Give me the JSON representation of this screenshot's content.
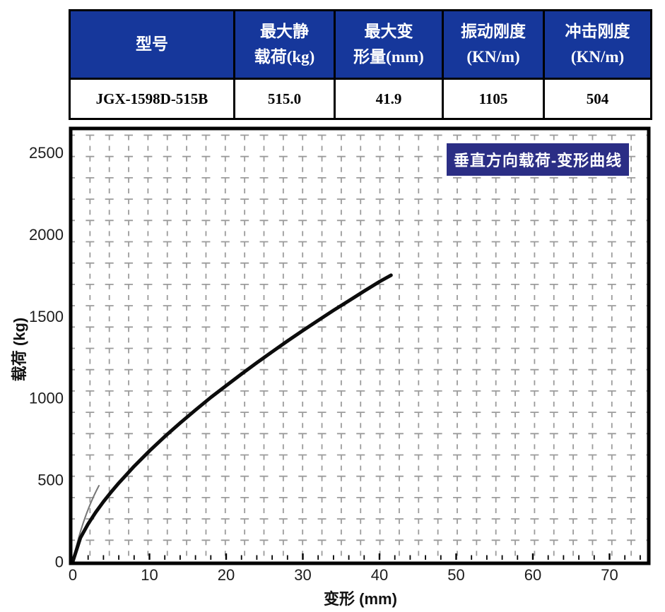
{
  "table": {
    "columns": [
      {
        "key": "model",
        "label": "型号"
      },
      {
        "key": "max_static_load",
        "label": "最大静\n载荷(kg)"
      },
      {
        "key": "max_deformation",
        "label": "最大变\n形量(mm)"
      },
      {
        "key": "vibration_stiffness",
        "label": "振动刚度\n(KN/m)"
      },
      {
        "key": "impact_stiffness",
        "label": "冲击刚度\n(KN/m)"
      }
    ],
    "row": {
      "model": "JGX-1598D-515B",
      "max_static_load": "515.0",
      "max_deformation": "41.9",
      "vibration_stiffness": "1105",
      "impact_stiffness": "504"
    }
  },
  "chart": {
    "title": "垂直方向载荷-变形曲线",
    "xlabel": "变形 (mm)",
    "ylabel": "载荷 (kg)"
  },
  "chart_data": {
    "type": "line",
    "title": "垂直方向载荷-变形曲线",
    "xlabel": "变形 (mm)",
    "ylabel": "载荷 (kg)",
    "xlim": [
      0,
      75
    ],
    "ylim": [
      0,
      2650
    ],
    "x_ticks": [
      0,
      10,
      20,
      30,
      40,
      50,
      60,
      70
    ],
    "y_ticks": [
      0,
      500,
      1000,
      1500,
      2000,
      2500
    ],
    "grid": "dashed",
    "legend": "none",
    "series": [
      {
        "name": "垂直方向载荷-变形曲线",
        "x": [
          0,
          1,
          2,
          3,
          4,
          5,
          6,
          8,
          10,
          12,
          14,
          16,
          18,
          20,
          22,
          24,
          26,
          28,
          30,
          32,
          34,
          36,
          38,
          40,
          41.5
        ],
        "y": [
          0,
          145,
          230,
          302,
          366,
          425,
          480,
          582,
          676,
          764,
          847,
          926,
          1003,
          1075,
          1146,
          1215,
          1282,
          1348,
          1412,
          1474,
          1535,
          1594,
          1653,
          1711,
          1750
        ]
      }
    ]
  },
  "colors": {
    "header_bg": "#16379B",
    "header_text": "#ffffff",
    "title_box_bg": "#2B2E85",
    "title_box_text": "#ffffff",
    "grid": "#9b9b9b",
    "curve": "#0c0c0c",
    "curve_shadow": "#777777",
    "axis": "#000000",
    "tick_text": "#1c1c1c"
  }
}
